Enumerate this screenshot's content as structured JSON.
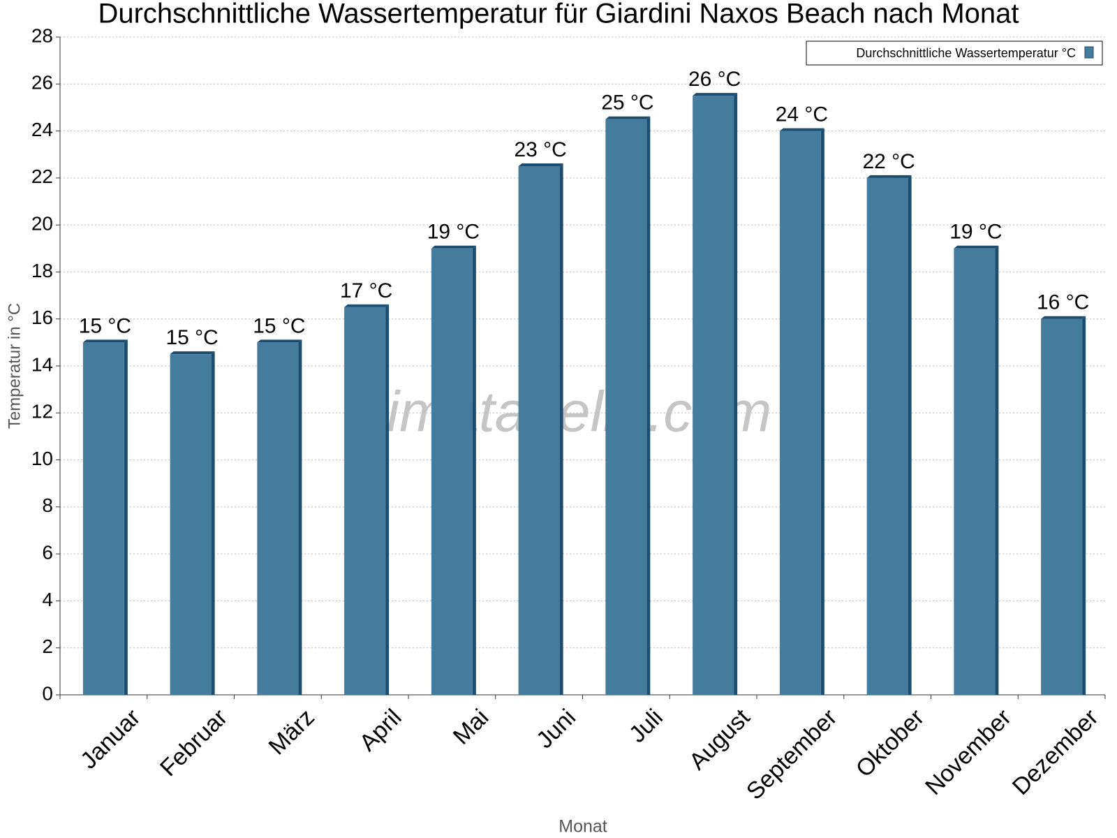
{
  "chart_data": {
    "type": "bar",
    "title": "Durchschnittliche Wassertemperatur für Giardini Naxos Beach nach Monat",
    "x_label": "Monat",
    "y_label": "Temperatur in °C",
    "watermark": "klimatabelle.com",
    "categories": [
      "Januar",
      "Februar",
      "März",
      "April",
      "Mai",
      "Juni",
      "Juli",
      "August",
      "September",
      "Oktober",
      "November",
      "Dezember"
    ],
    "series": [
      {
        "name": "Durchschnittliche Wassertemperatur °C",
        "color": "#457b9d",
        "values": [
          15,
          14.5,
          15,
          16.5,
          19,
          22.5,
          24.5,
          25.5,
          24,
          22,
          19,
          16
        ],
        "value_labels": [
          "15 °C",
          "15 °C",
          "15 °C",
          "17 °C",
          "19 °C",
          "23 °C",
          "25 °C",
          "26 °C",
          "24 °C",
          "22 °C",
          "19 °C",
          "16 °C"
        ]
      }
    ],
    "ylim": [
      0,
      28
    ],
    "yticks": [
      0,
      2,
      4,
      6,
      8,
      10,
      12,
      14,
      16,
      18,
      20,
      22,
      24,
      26,
      28
    ],
    "grid": true,
    "legend": "top-right"
  }
}
